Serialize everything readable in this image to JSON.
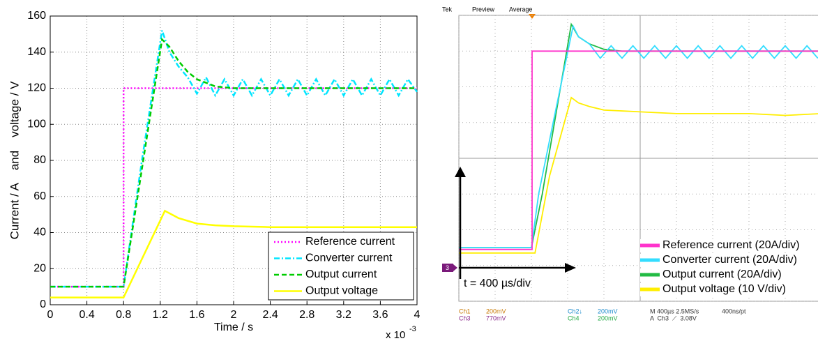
{
  "chart_data": [
    {
      "type": "line",
      "y_label": "Current / A    and    voltage / V",
      "x_label": "Time / s",
      "x_multiplier": {
        "base": "x 10",
        "exponent": "-3"
      },
      "xlim": [
        0,
        4
      ],
      "xticks": [
        0,
        0.4,
        0.8,
        1.2,
        1.6,
        2,
        2.4,
        2.8,
        3.2,
        3.6,
        4
      ],
      "ylim": [
        0,
        160
      ],
      "yticks": [
        0,
        20,
        40,
        60,
        80,
        100,
        120,
        140,
        160
      ],
      "grid": true,
      "legend": "lower right",
      "series": [
        {
          "name": "Reference current",
          "color": "#ff00ff",
          "style": "dotted",
          "x": [
            0,
            0.8,
            0.8,
            4
          ],
          "values": [
            10,
            10,
            120,
            120
          ]
        },
        {
          "name": "Converter current",
          "color": "#00e5ff",
          "style": "dashdot",
          "x": [
            0,
            0.8,
            1.0,
            1.22,
            1.3,
            1.4,
            1.5,
            1.6,
            1.7,
            1.8,
            1.9,
            2.0,
            2.1,
            2.2,
            2.3,
            2.4,
            2.5,
            2.6,
            2.7,
            2.8,
            2.9,
            3.0,
            3.1,
            3.2,
            3.3,
            3.4,
            3.5,
            3.6,
            3.7,
            3.8,
            3.9,
            4.0
          ],
          "values": [
            10,
            10,
            80,
            152,
            140,
            132,
            126,
            117,
            126,
            116,
            125,
            116,
            125,
            116,
            125,
            116,
            125,
            116,
            125,
            116,
            125,
            116,
            125,
            116,
            125,
            116,
            125,
            116,
            125,
            116,
            125,
            118
          ]
        },
        {
          "name": "Output current",
          "color": "#00cc00",
          "style": "dashed",
          "x": [
            0,
            0.8,
            1.22,
            1.3,
            1.4,
            1.5,
            1.6,
            1.7,
            1.8,
            2.0,
            4.0
          ],
          "values": [
            10,
            10,
            147,
            143,
            135,
            129,
            125,
            123,
            121,
            120,
            120
          ]
        },
        {
          "name": "Output voltage",
          "color": "#ffff00",
          "style": "solid",
          "x": [
            0,
            0.8,
            1.25,
            1.4,
            1.6,
            1.8,
            2.0,
            2.4,
            4.0
          ],
          "values": [
            4,
            4,
            52,
            48,
            45,
            44,
            43.5,
            43,
            43
          ]
        }
      ]
    },
    {
      "type": "scope",
      "header": [
        "Tek",
        "Preview",
        "Average"
      ],
      "time_label": "t = 400 µs/div",
      "channel_marker": "3",
      "readouts": [
        "Ch1",
        "200mV",
        "Ch3",
        "770mV",
        "Ch2↓",
        "200mV",
        "Ch4",
        "200mV",
        "M 400µs 2.5MS/s",
        "400ns/pt",
        "A  Ch3  ⟋  3.08V"
      ],
      "xlim": [
        0,
        10
      ],
      "xticks": [
        0,
        1,
        2,
        3,
        4,
        5,
        6,
        7,
        8,
        9,
        10
      ],
      "ylim": [
        0,
        8
      ],
      "yticks": [
        0,
        1,
        2,
        3,
        4,
        5,
        6,
        7,
        8
      ],
      "series": [
        {
          "name": "Reference current (20A/div)",
          "color": "#ff33cc",
          "x": [
            0,
            2.02,
            2.02,
            10
          ],
          "values": [
            1.45,
            1.45,
            7.0,
            7.0
          ]
        },
        {
          "name": "Converter current (20A/div)",
          "color": "#33ddff",
          "x": [
            0,
            2.0,
            2.2,
            2.6,
            3.15,
            3.3,
            3.6,
            3.9,
            4.2,
            4.5,
            4.8,
            5.1,
            5.4,
            5.7,
            6.0,
            6.3,
            6.6,
            6.9,
            7.2,
            7.5,
            7.8,
            8.1,
            8.4,
            8.7,
            9.0,
            9.3,
            9.6,
            9.9
          ],
          "values": [
            1.5,
            1.5,
            3.0,
            5.0,
            7.7,
            7.4,
            7.2,
            6.8,
            7.15,
            6.8,
            7.15,
            6.8,
            7.15,
            6.8,
            7.15,
            6.8,
            7.15,
            6.8,
            7.15,
            6.8,
            7.15,
            6.8,
            7.15,
            6.8,
            7.15,
            6.8,
            7.15,
            6.8
          ]
        },
        {
          "name": "Output current (20A/div)",
          "color": "#22bb44",
          "x": [
            0,
            2.0,
            2.3,
            3.1,
            3.3,
            3.6,
            4.0,
            4.5,
            5.0,
            10
          ],
          "values": [
            1.5,
            1.5,
            3.0,
            7.75,
            7.4,
            7.2,
            7.05,
            7.0,
            7.0,
            7.0
          ]
        },
        {
          "name": "Output voltage (10 V/div)",
          "color": "#ffee00",
          "x": [
            0,
            2.1,
            2.5,
            3.1,
            3.3,
            3.6,
            4.0,
            5,
            6,
            7,
            8,
            9,
            10
          ],
          "values": [
            1.35,
            1.35,
            3.5,
            5.7,
            5.55,
            5.45,
            5.35,
            5.3,
            5.25,
            5.25,
            5.25,
            5.2,
            5.25
          ]
        }
      ]
    }
  ]
}
